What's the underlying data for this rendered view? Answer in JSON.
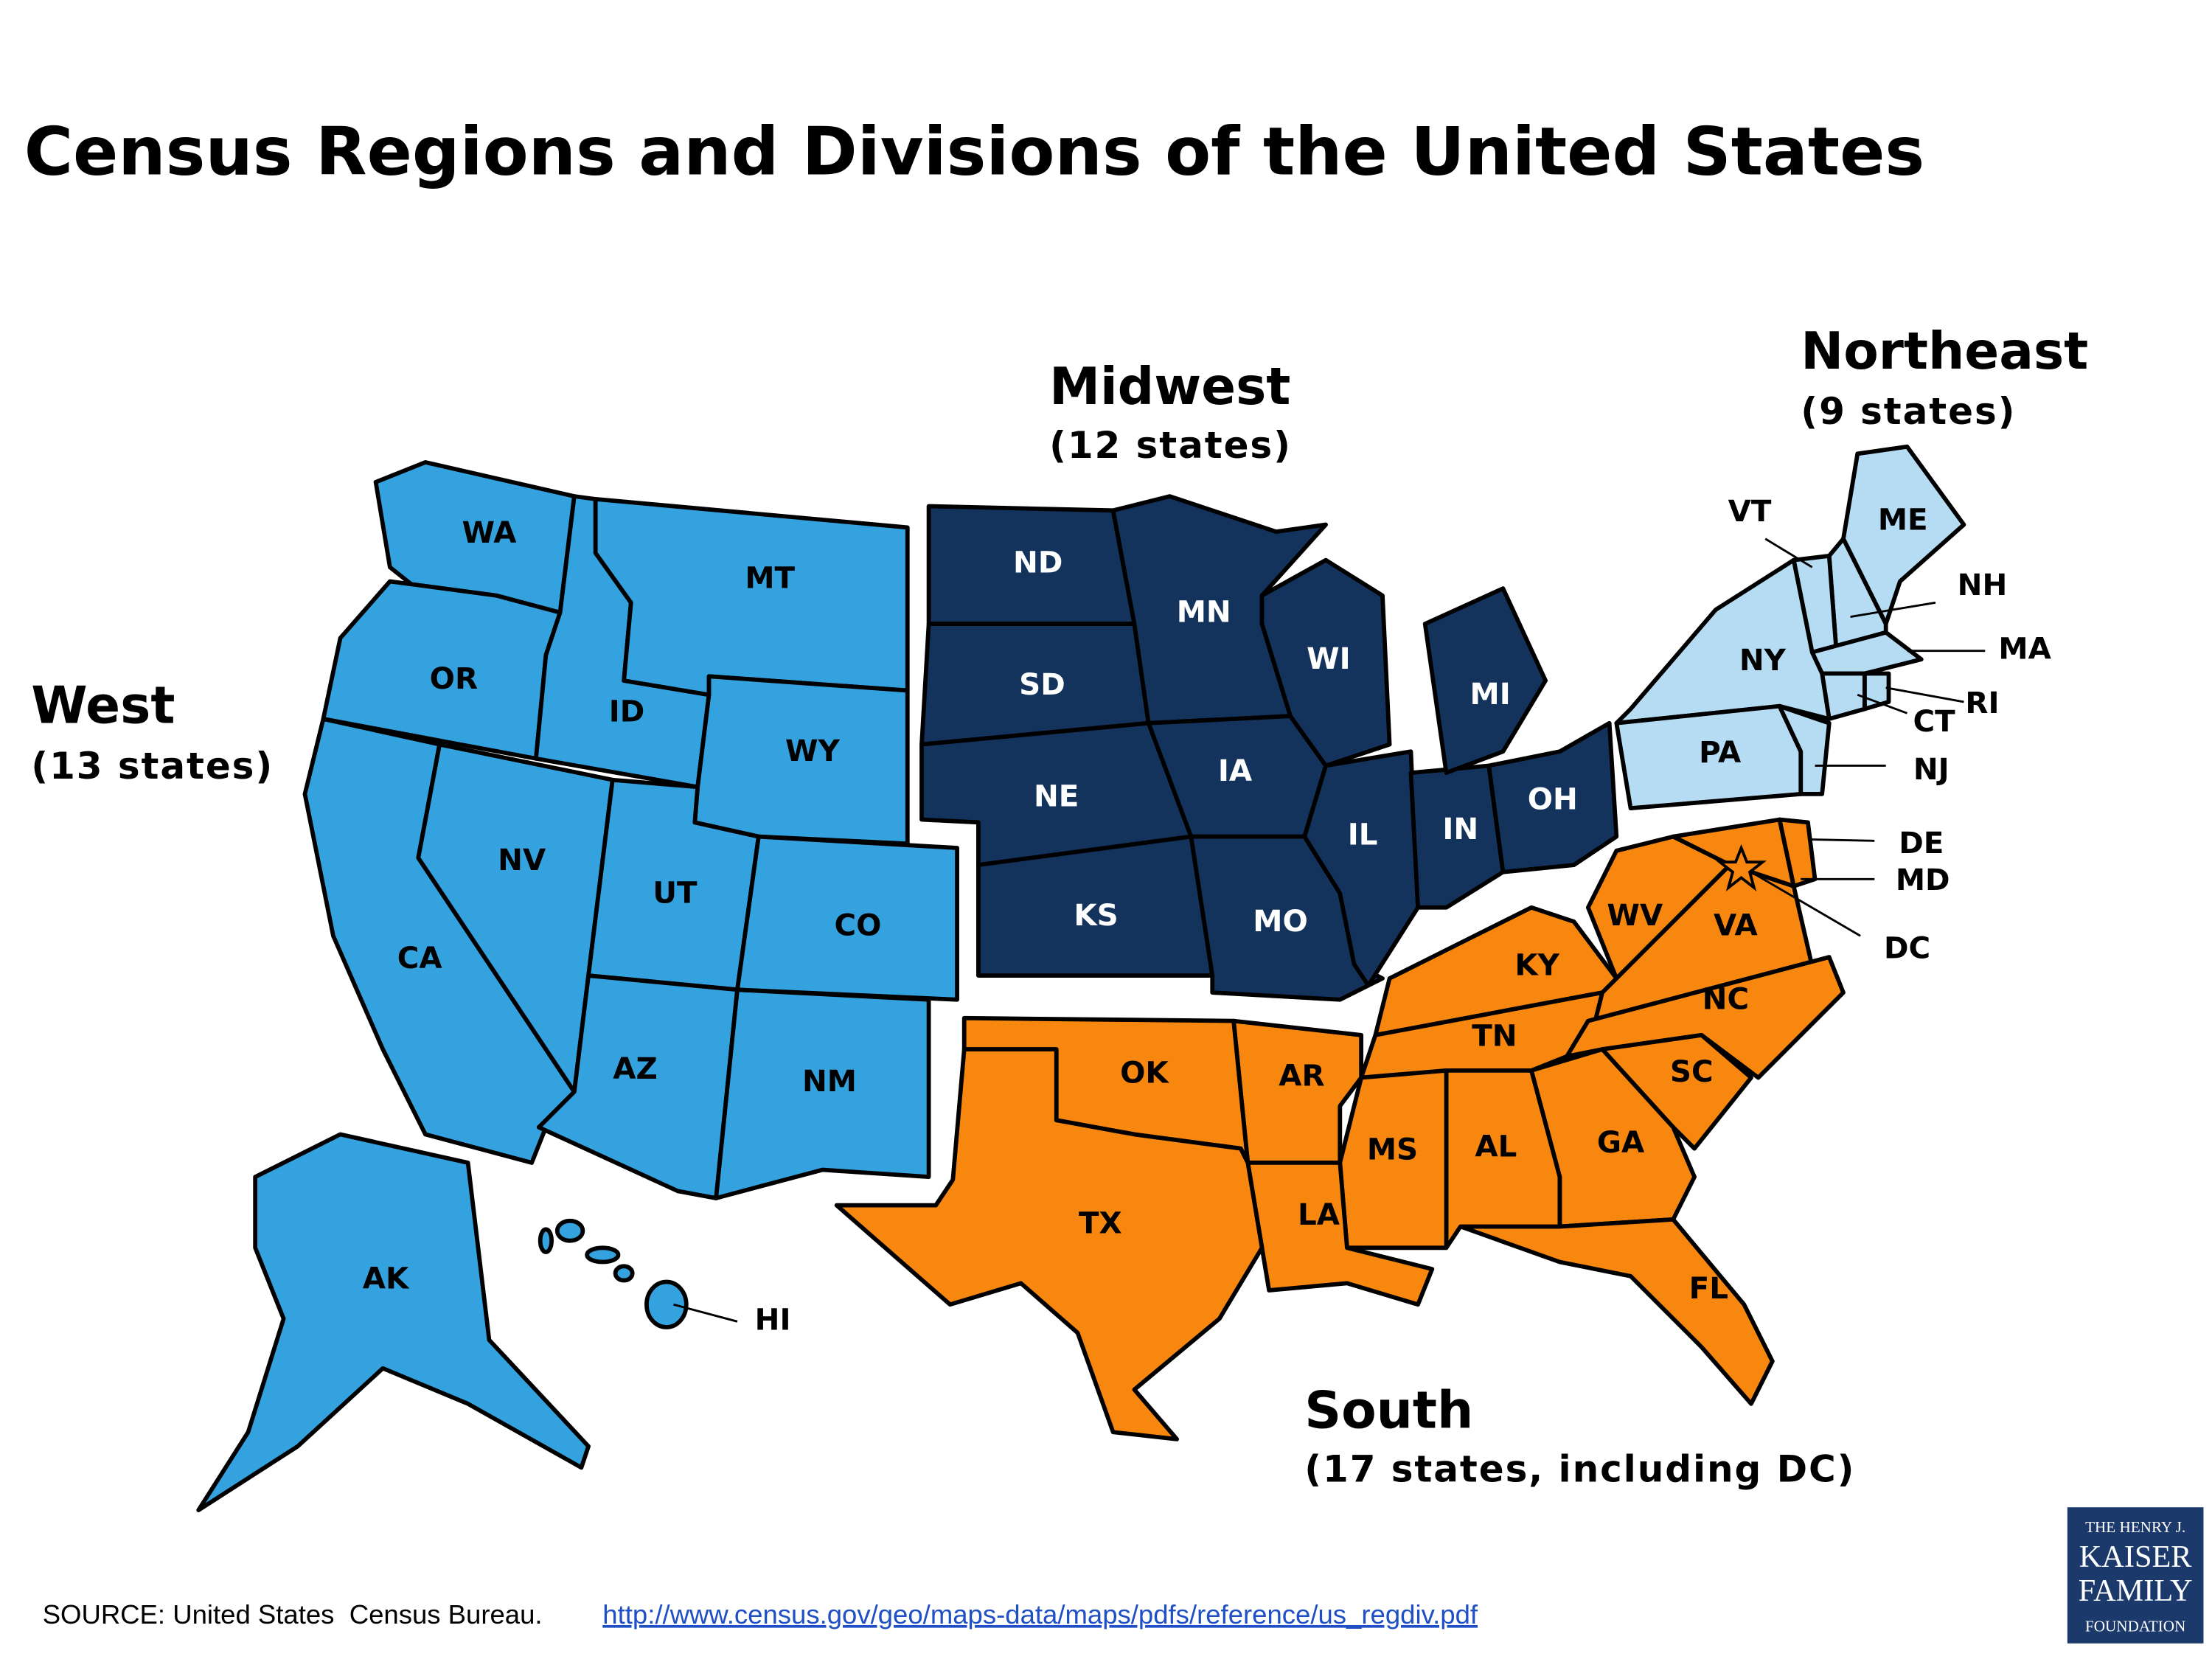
{
  "title": "Census Regions and Divisions of the United States",
  "regions": [
    {
      "name": "West",
      "count": "(13 states)",
      "states": [
        "WA",
        "OR",
        "CA",
        "NV",
        "ID",
        "MT",
        "WY",
        "UT",
        "CO",
        "AZ",
        "NM",
        "AK",
        "HI"
      ]
    },
    {
      "name": "Midwest",
      "count": "(12 states)",
      "states": [
        "ND",
        "SD",
        "NE",
        "KS",
        "MN",
        "IA",
        "MO",
        "WI",
        "IL",
        "IN",
        "OH",
        "MI"
      ]
    },
    {
      "name": "Northeast",
      "count": "(9 states)",
      "states": [
        "ME",
        "NH",
        "VT",
        "MA",
        "RI",
        "CT",
        "NY",
        "PA",
        "NJ"
      ]
    },
    {
      "name": "South",
      "count": "(17 states, including DC)",
      "states": [
        "DE",
        "MD",
        "DC",
        "VA",
        "WV",
        "KY",
        "TN",
        "NC",
        "SC",
        "GA",
        "FL",
        "AL",
        "MS",
        "AR",
        "LA",
        "OK",
        "TX"
      ]
    }
  ],
  "source": {
    "text": "SOURCE: United States  Census Bureau.",
    "url": "http://www.census.gov/geo/maps-data/maps/pdfs/reference/us_regdiv.pdf"
  },
  "logo": [
    "THE HENRY J.",
    "KAISER",
    "FAMILY",
    "FOUNDATION"
  ]
}
